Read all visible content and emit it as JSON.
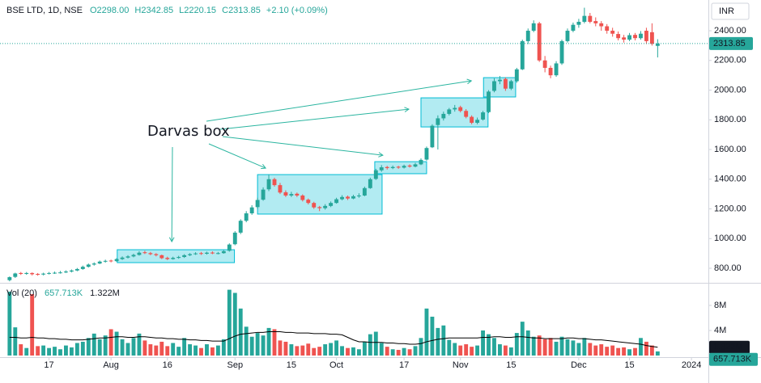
{
  "chart_data": {
    "type": "candlestick",
    "header": {
      "symbol": "BSE LTD, 1D, NSE",
      "open_label": "O2298.00",
      "high_label": "H2342.85",
      "low_label": "L2220.15",
      "close_label": "C2313.85",
      "change_label": "+2.10 (+0.09%)"
    },
    "currency": "INR",
    "annotation": "Darvas box",
    "up_color": "#26a69a",
    "down_color": "#ef5350",
    "open": [
      720,
      742,
      768,
      762,
      768,
      762,
      758,
      764,
      768,
      770,
      772,
      778,
      785,
      795,
      810,
      825,
      832,
      845,
      852,
      848,
      862,
      872,
      880,
      890,
      908,
      902,
      895,
      888,
      870,
      862,
      870,
      876,
      888,
      895,
      902,
      898,
      906,
      900,
      902,
      918,
      962,
      1040,
      1120,
      1170,
      1212,
      1262,
      1332,
      1400,
      1360,
      1312,
      1290,
      1302,
      1290,
      1262,
      1240,
      1212,
      1205,
      1220,
      1240,
      1265,
      1282,
      1270,
      1285,
      1290,
      1340,
      1402,
      1460,
      1482,
      1475,
      1484,
      1478,
      1492,
      1485,
      1500,
      1532,
      1615,
      1765,
      1810,
      1840,
      1870,
      1885,
      1860,
      1820,
      1780,
      1802,
      1852,
      1995,
      2060,
      2075,
      2010,
      2060,
      2140,
      2330,
      2400,
      2450,
      2200,
      2150,
      2100,
      2180,
      2330,
      2400,
      2440,
      2460,
      2500,
      2465,
      2450,
      2430,
      2400,
      2378,
      2355,
      2340,
      2372,
      2350,
      2400,
      2390,
      2298.0
    ],
    "high": [
      745,
      770,
      775,
      775,
      772,
      768,
      770,
      775,
      778,
      782,
      786,
      792,
      802,
      818,
      832,
      840,
      852,
      858,
      858,
      868,
      880,
      888,
      898,
      915,
      918,
      910,
      902,
      892,
      878,
      878,
      884,
      895,
      902,
      908,
      910,
      912,
      914,
      910,
      922,
      968,
      1050,
      1130,
      1185,
      1225,
      1275,
      1345,
      1430,
      1410,
      1375,
      1325,
      1315,
      1310,
      1298,
      1270,
      1248,
      1220,
      1232,
      1250,
      1275,
      1292,
      1290,
      1295,
      1305,
      1350,
      1410,
      1470,
      1495,
      1490,
      1492,
      1490,
      1498,
      1500,
      1510,
      1540,
      1620,
      1770,
      1830,
      1855,
      1880,
      1900,
      1895,
      1872,
      1830,
      1815,
      1860,
      2000,
      2080,
      2095,
      2085,
      2070,
      2150,
      2340,
      2415,
      2470,
      2460,
      2230,
      2165,
      2195,
      2340,
      2415,
      2455,
      2480,
      2555,
      2520,
      2490,
      2465,
      2445,
      2420,
      2395,
      2372,
      2385,
      2385,
      2398,
      2420,
      2450,
      2342.85
    ],
    "low": [
      712,
      735,
      755,
      756,
      752,
      750,
      752,
      758,
      762,
      764,
      768,
      772,
      780,
      790,
      805,
      818,
      828,
      838,
      840,
      844,
      856,
      866,
      874,
      885,
      896,
      888,
      880,
      862,
      855,
      858,
      864,
      870,
      882,
      890,
      890,
      892,
      895,
      894,
      898,
      912,
      955,
      1030,
      1110,
      1160,
      1200,
      1255,
      1320,
      1350,
      1300,
      1280,
      1280,
      1280,
      1250,
      1230,
      1200,
      1185,
      1195,
      1212,
      1235,
      1258,
      1260,
      1265,
      1275,
      1285,
      1335,
      1395,
      1450,
      1465,
      1468,
      1470,
      1472,
      1478,
      1480,
      1495,
      1525,
      1610,
      1600,
      1795,
      1830,
      1855,
      1850,
      1810,
      1770,
      1770,
      1795,
      1845,
      1985,
      2040,
      1995,
      2000,
      2050,
      2135,
      2310,
      2390,
      2190,
      2120,
      2080,
      2090,
      2170,
      2320,
      2390,
      2420,
      2450,
      2450,
      2430,
      2400,
      2380,
      2360,
      2335,
      2320,
      2330,
      2335,
      2340,
      2310,
      2300,
      2220.15
    ],
    "close": [
      740,
      765,
      762,
      768,
      760,
      758,
      764,
      768,
      770,
      772,
      778,
      785,
      795,
      810,
      825,
      832,
      845,
      850,
      848,
      862,
      872,
      880,
      890,
      905,
      902,
      895,
      888,
      868,
      862,
      870,
      876,
      888,
      895,
      900,
      898,
      905,
      900,
      902,
      915,
      960,
      1040,
      1120,
      1170,
      1210,
      1260,
      1330,
      1400,
      1360,
      1310,
      1290,
      1300,
      1290,
      1260,
      1240,
      1210,
      1205,
      1220,
      1240,
      1265,
      1280,
      1270,
      1285,
      1290,
      1340,
      1400,
      1460,
      1480,
      1475,
      1482,
      1478,
      1490,
      1485,
      1500,
      1530,
      1610,
      1760,
      1810,
      1840,
      1870,
      1880,
      1860,
      1820,
      1780,
      1800,
      1850,
      1990,
      2060,
      2070,
      2010,
      2060,
      2140,
      2330,
      2400,
      2450,
      2200,
      2150,
      2100,
      2180,
      2330,
      2400,
      2440,
      2460,
      2500,
      2460,
      2450,
      2430,
      2400,
      2380,
      2350,
      2340,
      2370,
      2350,
      2380,
      2330,
      2311.75,
      2313.85
    ],
    "xlim": [
      -1.7,
      124.0
    ],
    "xticks": [
      {
        "value": 7,
        "label": "17"
      },
      {
        "value": 18,
        "label": "Aug"
      },
      {
        "value": 28,
        "label": "16"
      },
      {
        "value": 40,
        "label": "Sep"
      },
      {
        "value": 50,
        "label": "15"
      },
      {
        "value": 58,
        "label": "Oct"
      },
      {
        "value": 70,
        "label": "17"
      },
      {
        "value": 80,
        "label": "Nov"
      },
      {
        "value": 89,
        "label": "15"
      },
      {
        "value": 101,
        "label": "Dec"
      },
      {
        "value": 110,
        "label": "15"
      },
      {
        "value": 121,
        "label": "2024"
      }
    ],
    "ylim": [
      713,
      2607
    ],
    "yticks": [
      {
        "value": 800,
        "label": "800.00"
      },
      {
        "value": 1000,
        "label": "1000.00"
      },
      {
        "value": 1200,
        "label": "1200.00"
      },
      {
        "value": 1400,
        "label": "1400.00"
      },
      {
        "value": 1600,
        "label": "1600.00"
      },
      {
        "value": 1800,
        "label": "1800.00"
      },
      {
        "value": 2000,
        "label": "2000.00"
      },
      {
        "value": 2200,
        "label": "2200.00"
      },
      {
        "value": 2400,
        "label": "2400.00"
      }
    ],
    "grid": false,
    "box_color": "#00bcd4",
    "boxes": [
      {
        "start": 19.1,
        "end": 39.9,
        "low": 838,
        "high": 925
      },
      {
        "start": 44.0,
        "end": 66.1,
        "low": 1165,
        "high": 1431
      },
      {
        "start": 64.8,
        "end": 74.0,
        "low": 1437,
        "high": 1518
      },
      {
        "start": 73.0,
        "end": 84.9,
        "low": 1752,
        "high": 1948
      },
      {
        "start": 84.1,
        "end": 89.8,
        "low": 1954,
        "high": 2084
      }
    ],
    "volume": {
      "label": "Vol (20)",
      "values": [
        10.2,
        4.5,
        1.8,
        1.2,
        9.8,
        1.5,
        1.6,
        1.2,
        1.4,
        1.0,
        1.6,
        1.3,
        2.0,
        2.2,
        2.8,
        3.5,
        2.6,
        3.2,
        4.2,
        3.8,
        2.6,
        2.0,
        2.8,
        3.5,
        2.4,
        1.8,
        1.6,
        2.2,
        1.5,
        2.0,
        1.4,
        2.8,
        1.8,
        1.6,
        1.2,
        1.8,
        1.3,
        1.6,
        2.6,
        10.5,
        10.0,
        7.5,
        4.6,
        3.0,
        3.6,
        3.2,
        4.4,
        4.2,
        2.4,
        2.2,
        1.8,
        1.5,
        1.6,
        1.9,
        1.2,
        1.4,
        1.8,
        2.0,
        2.4,
        1.5,
        1.2,
        1.3,
        1.0,
        2.2,
        3.4,
        3.8,
        2.0,
        1.4,
        1.0,
        0.9,
        1.2,
        1.0,
        1.5,
        2.8,
        7.5,
        6.2,
        4.4,
        4.8,
        2.5,
        2.0,
        1.6,
        1.8,
        1.4,
        1.6,
        4.0,
        3.4,
        2.8,
        1.8,
        1.6,
        1.3,
        3.6,
        5.4,
        4.0,
        3.0,
        3.2,
        2.6,
        2.8,
        2.2,
        3.0,
        2.6,
        2.4,
        2.0,
        2.8,
        2.0,
        1.6,
        1.8,
        1.4,
        1.6,
        1.2,
        1.3,
        1.0,
        1.2,
        2.8,
        2.2,
        1.6,
        0.657713
      ],
      "last_value_label": "657.713K",
      "ma": [
        2.9,
        2.9,
        2.8,
        2.8,
        2.9,
        2.8,
        2.8,
        2.7,
        2.7,
        2.6,
        2.6,
        2.5,
        2.5,
        2.5,
        2.6,
        2.7,
        2.8,
        2.8,
        2.9,
        3.0,
        3.0,
        2.9,
        2.9,
        3.0,
        3.0,
        2.9,
        2.8,
        2.8,
        2.7,
        2.7,
        2.6,
        2.6,
        2.5,
        2.5,
        2.4,
        2.4,
        2.3,
        2.3,
        2.3,
        2.7,
        3.1,
        3.4,
        3.5,
        3.6,
        3.7,
        3.7,
        3.8,
        3.8,
        3.8,
        3.7,
        3.7,
        3.6,
        3.6,
        3.6,
        3.5,
        3.5,
        3.5,
        3.4,
        3.4,
        3.3,
        2.9,
        2.5,
        2.2,
        2.2,
        2.1,
        2.1,
        2.1,
        2.0,
        2.0,
        1.9,
        1.9,
        1.8,
        1.8,
        1.9,
        2.2,
        2.4,
        2.6,
        2.7,
        2.8,
        2.8,
        2.8,
        2.8,
        2.8,
        2.8,
        2.9,
        2.9,
        3.0,
        3.0,
        2.9,
        2.9,
        3.0,
        3.0,
        2.9,
        2.8,
        2.8,
        2.7,
        2.7,
        2.7,
        2.7,
        2.8,
        2.8,
        2.7,
        2.7,
        2.6,
        2.5,
        2.5,
        2.4,
        2.3,
        2.2,
        2.1,
        2.0,
        1.9,
        1.8,
        1.6,
        1.45,
        1.322
      ],
      "ma_last_label": "1.322M",
      "ma_color": "#000000",
      "ylim": [
        0,
        11.35
      ],
      "yticks": [
        {
          "value": 4,
          "label": "4M"
        },
        {
          "value": 8,
          "label": "8M"
        }
      ]
    }
  }
}
